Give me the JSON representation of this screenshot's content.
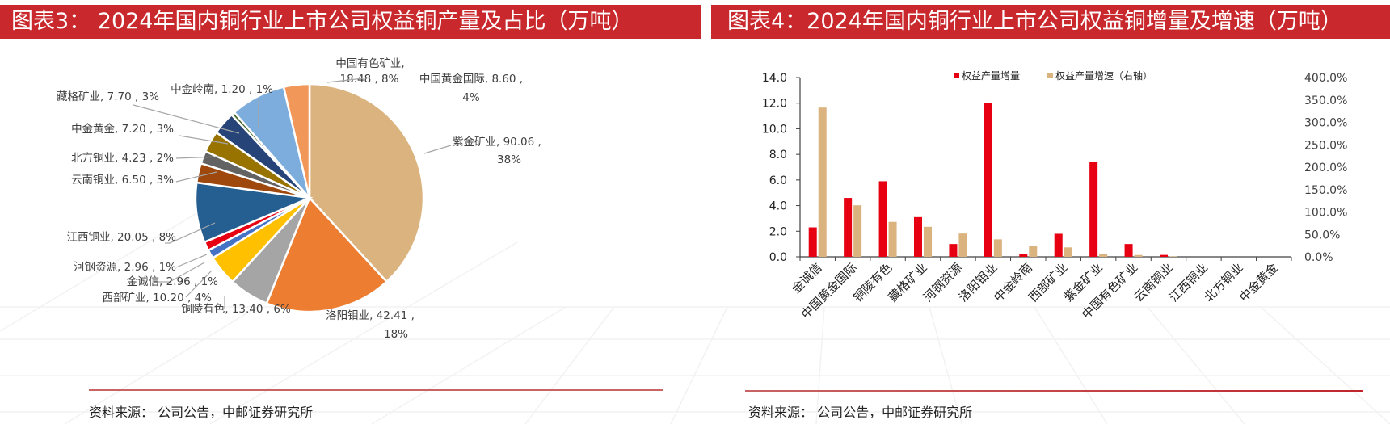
{
  "left_panel": {
    "title": "图表3： 2024年国内铜行业上市公司权益铜产量及占比（万吨）",
    "source": "资料来源： 公司公告，中邮证券研究所"
  },
  "right_panel": {
    "title": "图表4：2024年国内铜行业上市公司权益铜增量及增速（万吨）",
    "source": "资料来源： 公司公告，中邮证券研究所"
  },
  "chart_data": [
    {
      "type": "pie",
      "title": "2024年国内铜行业上市公司权益铜产量及占比（万吨）",
      "unit": "万吨",
      "start_angle": "12 o'clock, clockwise",
      "slices": [
        {
          "label": "紫金矿业",
          "value": 90.06,
          "pct": "38%",
          "color": "#dbb37e",
          "text": "紫金矿业, 90.06 ,",
          "text2": "38%"
        },
        {
          "label": "洛阳钼业",
          "value": 42.41,
          "pct": "18%",
          "color": "#ed7d31",
          "text": "洛阳钼业, 42.41 ,",
          "text2": "18%"
        },
        {
          "label": "铜陵有色",
          "value": 13.4,
          "pct": "6%",
          "color": "#a5a5a5",
          "text": "铜陵有色, 13.40 , 6%"
        },
        {
          "label": "西部矿业",
          "value": 10.2,
          "pct": "4%",
          "color": "#ffc000",
          "text": "西部矿业, 10.20 , 4%"
        },
        {
          "label": "金诚信",
          "value": 2.96,
          "pct": "1%",
          "color": "#4472c4",
          "text": "金诚信, 2.96 , 1%"
        },
        {
          "label": "河钢资源",
          "value": 2.96,
          "pct": "1%",
          "color": "#e60012",
          "text": "河钢资源, 2.96 , 1%"
        },
        {
          "label": "江西铜业",
          "value": 20.05,
          "pct": "8%",
          "color": "#255e91",
          "text": "江西铜业, 20.05 , 8%"
        },
        {
          "label": "云南铜业",
          "value": 6.5,
          "pct": "3%",
          "color": "#9e480e",
          "text": "云南铜业, 6.50 , 3%"
        },
        {
          "label": "北方铜业",
          "value": 4.23,
          "pct": "2%",
          "color": "#636363",
          "text": "北方铜业, 4.23 , 2%"
        },
        {
          "label": "中金黄金",
          "value": 7.2,
          "pct": "3%",
          "color": "#997300",
          "text": "中金黄金, 7.20 , 3%"
        },
        {
          "label": "藏格矿业",
          "value": 7.7,
          "pct": "3%",
          "color": "#264478",
          "text": "藏格矿业, 7.70 , 3%"
        },
        {
          "label": "中金岭南",
          "value": 1.2,
          "pct": "1%",
          "color": "#43682b",
          "text": "中金岭南, 1.20 , 1%"
        },
        {
          "label": "中国有色矿业",
          "value": 18.48,
          "pct": "8%",
          "color": "#7caddd",
          "text": "中国有色矿业,",
          "text2": "18.48 , 8%"
        },
        {
          "label": "中国黄金国际",
          "value": 8.6,
          "pct": "4%",
          "color": "#f1975a",
          "text": "中国黄金国际, 8.60 ,",
          "text2": "4%"
        }
      ]
    },
    {
      "type": "bar",
      "title": "2024年国内铜行业上市公司权益铜增量及增速（万吨）",
      "categories": [
        "金诚信",
        "中国黄金国际",
        "铜陵有色",
        "藏格矿业",
        "河钢资源",
        "洛阳钼业",
        "中金岭南",
        "西部矿业",
        "紫金矿业",
        "中国有色矿业",
        "云南铜业",
        "江西铜业",
        "北方铜业",
        "中金黄金"
      ],
      "series": [
        {
          "name": "权益产量增量",
          "axis": "left",
          "color": "#e60012",
          "values": [
            2.3,
            4.6,
            5.9,
            3.1,
            1.0,
            12.0,
            0.2,
            1.8,
            7.4,
            1.0,
            0.15,
            0,
            0,
            0
          ]
        },
        {
          "name": "权益产量增速（右轴）",
          "axis": "right",
          "color": "#dbb37e",
          "values": [
            333,
            115,
            78,
            67,
            52,
            39,
            24,
            21,
            7,
            4,
            1,
            0,
            0,
            0
          ]
        }
      ],
      "legend": [
        "权益产量增量",
        "权益产量增速（右轴）"
      ],
      "legend_position": "top",
      "ylim": [
        0,
        14
      ],
      "yticks": [
        "0.0",
        "2.0",
        "4.0",
        "6.0",
        "8.0",
        "10.0",
        "12.0",
        "14.0"
      ],
      "y2lim": [
        0,
        400
      ],
      "y2ticks": [
        "0.0%",
        "50.0%",
        "100.0%",
        "150.0%",
        "200.0%",
        "250.0%",
        "300.0%",
        "350.0%",
        "400.0%"
      ],
      "y2unit": "%",
      "grid": false
    }
  ]
}
